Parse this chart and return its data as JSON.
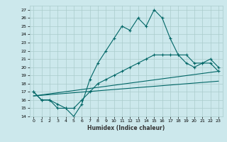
{
  "title": "",
  "xlabel": "Humidex (Indice chaleur)",
  "xlim": [
    -0.5,
    23.5
  ],
  "ylim": [
    14,
    27.5
  ],
  "yticks": [
    14,
    15,
    16,
    17,
    18,
    19,
    20,
    21,
    22,
    23,
    24,
    25,
    26,
    27
  ],
  "xticks": [
    0,
    1,
    2,
    3,
    4,
    5,
    6,
    7,
    8,
    9,
    10,
    11,
    12,
    13,
    14,
    15,
    16,
    17,
    18,
    19,
    20,
    21,
    22,
    23
  ],
  "bg_color": "#cce8ec",
  "grid_color": "#aacccc",
  "line_color": "#006666",
  "line1_x": [
    0,
    1,
    2,
    3,
    4,
    5,
    6,
    7,
    8,
    9,
    10,
    11,
    12,
    13,
    14,
    15,
    16,
    17,
    18,
    19,
    20,
    21,
    22,
    23
  ],
  "line1_y": [
    17,
    16,
    16,
    15,
    15,
    14,
    15.5,
    18.5,
    20.5,
    22,
    23.5,
    25,
    24.5,
    26,
    25,
    27,
    26,
    23.5,
    21.5,
    20.5,
    20,
    20.5,
    21,
    20
  ],
  "line2_x": [
    0,
    1,
    2,
    3,
    4,
    5,
    6,
    7,
    8,
    9,
    10,
    11,
    12,
    13,
    14,
    15,
    16,
    17,
    18,
    19,
    20,
    21,
    22,
    23
  ],
  "line2_y": [
    17,
    16,
    16,
    15.5,
    15,
    15,
    16,
    17,
    18,
    18.5,
    19,
    19.5,
    20,
    20.5,
    21,
    21.5,
    21.5,
    21.5,
    21.5,
    21.5,
    20.5,
    20.5,
    20.5,
    19.5
  ],
  "line3_x": [
    0,
    23
  ],
  "line3_y": [
    16.5,
    19.5
  ],
  "line4_x": [
    0,
    23
  ],
  "line4_y": [
    16.5,
    18.3
  ]
}
